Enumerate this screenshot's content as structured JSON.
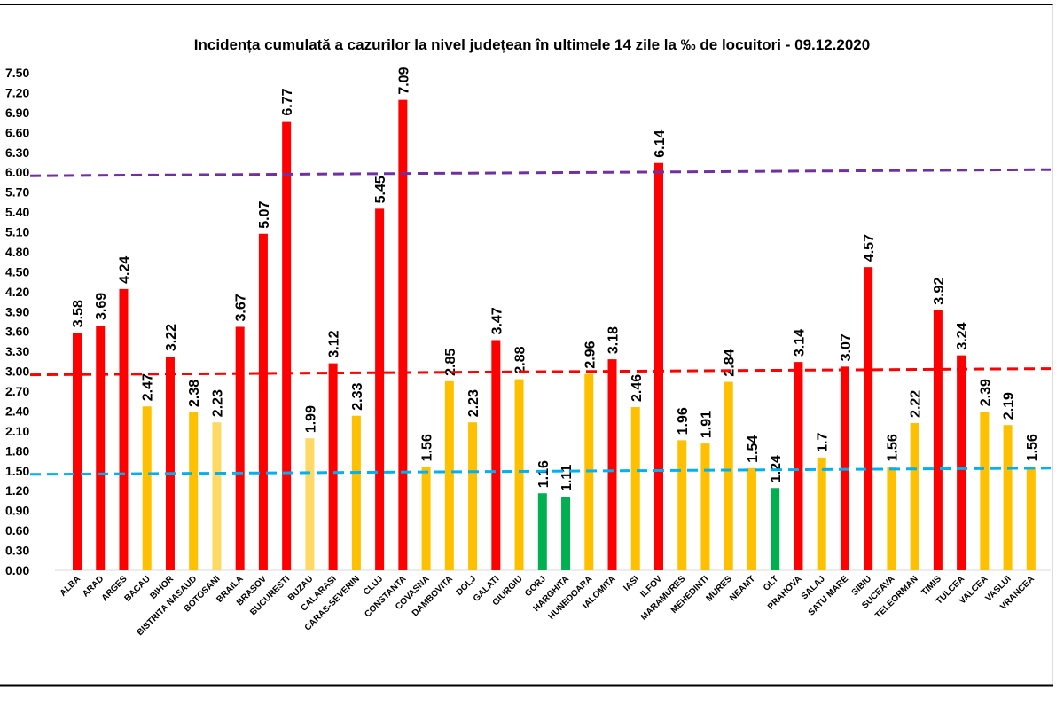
{
  "chart_data": {
    "type": "bar",
    "title": "Incidența cumulată a cazurilor la nivel județean în ultimele 14 zile la ‰ de locuitori - 09.12.2020",
    "xlabel": "",
    "ylabel": "",
    "ylim": [
      0,
      7.5
    ],
    "yticks": [
      "0.00",
      "0.30",
      "0.60",
      "0.90",
      "1.20",
      "1.50",
      "1.80",
      "2.10",
      "2.40",
      "2.70",
      "3.00",
      "3.30",
      "3.60",
      "3.90",
      "4.20",
      "4.50",
      "4.80",
      "5.10",
      "5.40",
      "5.70",
      "6.00",
      "6.30",
      "6.60",
      "6.90",
      "7.20",
      "7.50"
    ],
    "grid": false,
    "categories": [
      "ALBA",
      "ARAD",
      "ARGES",
      "BACAU",
      "BIHOR",
      "BISTRITA NASAUD",
      "BOTOSANI",
      "BRAILA",
      "BRASOV",
      "BUCURESTI",
      "BUZAU",
      "CALARASI",
      "CARAS-SEVERIN",
      "CLUJ",
      "CONSTANTA",
      "COVASNA",
      "DAMBOVITA",
      "DOLJ",
      "GALATI",
      "GIURGIU",
      "GORJ",
      "HARGHITA",
      "HUNEDOARA",
      "IALOMITA",
      "IASI",
      "ILFOV",
      "MARAMURES",
      "MEHEDINTI",
      "MURES",
      "NEAMT",
      "OLT",
      "PRAHOVA",
      "SALAJ",
      "SATU MARE",
      "SIBIU",
      "SUCEAVA",
      "TELEORMAN",
      "TIMIS",
      "TULCEA",
      "VALCEA",
      "VASLUI",
      "VRANCEA"
    ],
    "values": [
      3.58,
      3.69,
      4.24,
      2.47,
      3.22,
      2.38,
      2.23,
      3.67,
      5.07,
      6.77,
      1.99,
      3.12,
      2.33,
      5.45,
      7.09,
      1.56,
      2.85,
      2.23,
      3.47,
      2.88,
      1.16,
      1.11,
      2.96,
      3.18,
      2.46,
      6.14,
      1.96,
      1.91,
      2.84,
      1.54,
      1.24,
      3.14,
      1.7,
      3.07,
      4.57,
      1.56,
      2.22,
      3.92,
      3.24,
      2.39,
      2.19,
      1.56
    ],
    "value_labels": [
      "3.58",
      "3.69",
      "4.24",
      "2.47",
      "3.22",
      "2.38",
      "2.23",
      "3.67",
      "5.07",
      "6.77",
      "1.99",
      "3.12",
      "2.33",
      "5.45",
      "7.09",
      "1.56",
      "2.85",
      "2.23",
      "3.47",
      "2.88",
      "1.16",
      "1.11",
      "2.96",
      "3.18",
      "2.46",
      "6.14",
      "1.96",
      "1.91",
      "2.84",
      "1.54",
      "1.24",
      "3.14",
      "1.7",
      "3.07",
      "4.57",
      "1.56",
      "2.22",
      "3.92",
      "3.24",
      "2.39",
      "2.19",
      "1.56"
    ],
    "bar_colors": [
      "red",
      "red",
      "red",
      "orange",
      "red",
      "orange",
      "light",
      "red",
      "red",
      "red",
      "light",
      "red",
      "orange",
      "red",
      "red",
      "orange",
      "orange",
      "orange",
      "red",
      "orange",
      "green",
      "green",
      "orange",
      "red",
      "orange",
      "red",
      "orange",
      "orange",
      "orange",
      "orange",
      "green",
      "red",
      "orange",
      "red",
      "red",
      "orange",
      "orange",
      "red",
      "red",
      "orange",
      "orange",
      "orange"
    ],
    "palette": {
      "red": "#ff0000",
      "orange": "#ffc000",
      "light": "#ffd966",
      "green": "#00b050"
    },
    "thresholds": [
      {
        "value": 6.0,
        "color": "#7030a0"
      },
      {
        "value": 3.0,
        "color": "#ff0000"
      },
      {
        "value": 1.5,
        "color": "#00b0f0"
      }
    ]
  }
}
